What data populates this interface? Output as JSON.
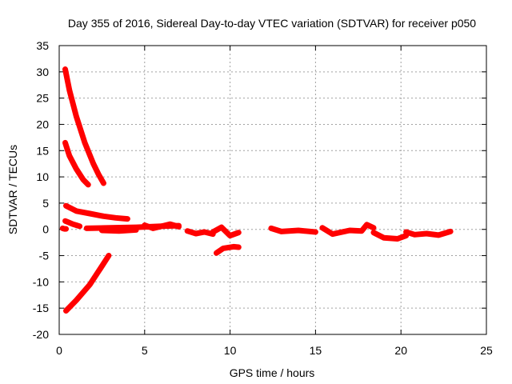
{
  "chart_data": {
    "type": "scatter",
    "title": "Day 355 of 2016, Sidereal Day-to-day VTEC variation (SDTVAR) for receiver p050",
    "xlabel": "GPS time / hours",
    "ylabel": "SDTVAR / TECUs",
    "xlim": [
      0,
      25
    ],
    "ylim": [
      -20,
      35
    ],
    "xticks": [
      0,
      5,
      10,
      15,
      20,
      25
    ],
    "yticks": [
      -20,
      -15,
      -10,
      -5,
      0,
      5,
      10,
      15,
      20,
      25,
      30,
      35
    ],
    "grid": true,
    "legend": "none",
    "color": "#ff0000",
    "series": [
      {
        "x": [
          0.35,
          0.6,
          1.0,
          1.5,
          2.0,
          2.3,
          2.6
        ],
        "y": [
          30.5,
          26.5,
          21.5,
          16.5,
          12.5,
          10.5,
          8.8
        ]
      },
      {
        "x": [
          0.35,
          0.6,
          1.0,
          1.4,
          1.7
        ],
        "y": [
          16.5,
          14.0,
          11.5,
          9.5,
          8.5
        ]
      },
      {
        "x": [
          0.4,
          1.0,
          1.8,
          2.6,
          3.3,
          4.0
        ],
        "y": [
          4.5,
          3.5,
          3.0,
          2.5,
          2.2,
          2.0
        ]
      },
      {
        "x": [
          0.2,
          0.3,
          0.4
        ],
        "y": [
          0.2,
          0.1,
          0.1
        ]
      },
      {
        "x": [
          0.35,
          0.5,
          0.8,
          1.0,
          1.2
        ],
        "y": [
          1.6,
          1.4,
          1.0,
          0.8,
          0.6
        ]
      },
      {
        "x": [
          1.6,
          3.0,
          4.5,
          6.0,
          7.0
        ],
        "y": [
          0.2,
          0.3,
          0.4,
          0.6,
          0.7
        ]
      },
      {
        "x": [
          2.5,
          3.5,
          4.5
        ],
        "y": [
          -0.2,
          -0.3,
          -0.1
        ]
      },
      {
        "x": [
          5.0,
          5.5,
          6.5,
          7.0
        ],
        "y": [
          0.8,
          0.2,
          1.0,
          0.5
        ]
      },
      {
        "x": [
          0.4,
          1.0,
          1.8,
          2.5,
          2.9
        ],
        "y": [
          -15.5,
          -13.5,
          -10.5,
          -7.0,
          -5.0
        ]
      },
      {
        "x": [
          7.5,
          8.0,
          8.5,
          9.0
        ],
        "y": [
          -0.3,
          -0.8,
          -0.5,
          -0.9
        ]
      },
      {
        "x": [
          9.0,
          9.5,
          10.0,
          10.5
        ],
        "y": [
          -0.5,
          0.4,
          -1.2,
          -0.6
        ]
      },
      {
        "x": [
          9.2,
          9.6,
          10.2,
          10.5
        ],
        "y": [
          -4.5,
          -3.6,
          -3.3,
          -3.4
        ]
      },
      {
        "x": [
          12.4,
          13.0,
          14.0,
          15.0
        ],
        "y": [
          0.2,
          -0.4,
          -0.2,
          -0.5
        ]
      },
      {
        "x": [
          15.4,
          16.0,
          17.0,
          17.7,
          18.0,
          18.4
        ],
        "y": [
          0.3,
          -0.9,
          -0.2,
          -0.3,
          0.9,
          0.3
        ]
      },
      {
        "x": [
          18.4,
          19.0,
          19.8,
          20.3
        ],
        "y": [
          -0.6,
          -1.6,
          -1.8,
          -1.2
        ]
      },
      {
        "x": [
          20.3,
          20.8,
          21.5,
          22.2,
          22.9
        ],
        "y": [
          -0.5,
          -1.0,
          -0.8,
          -1.1,
          -0.4
        ]
      }
    ]
  }
}
